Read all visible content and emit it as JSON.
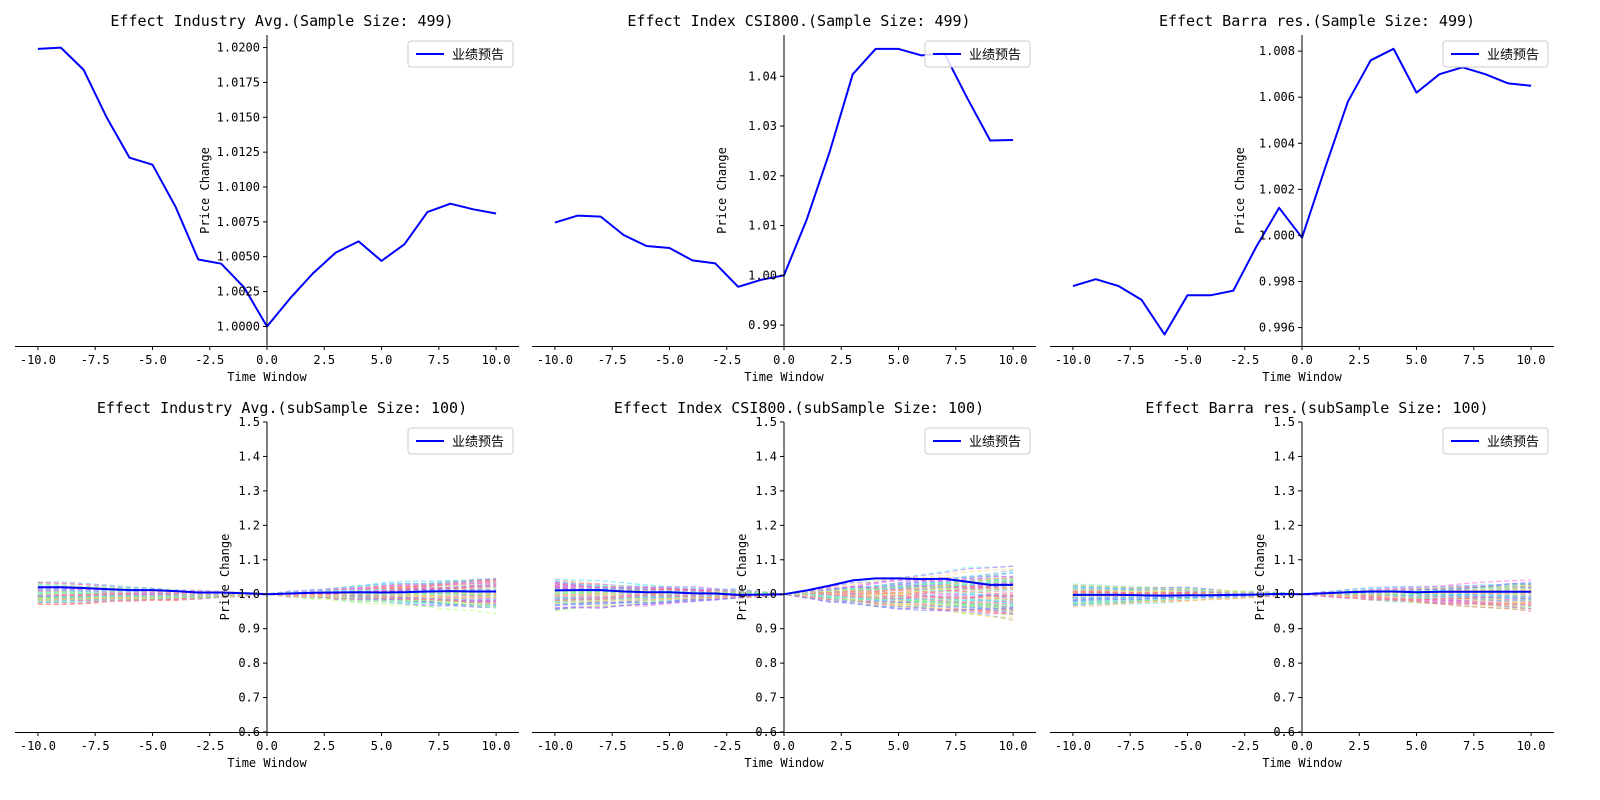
{
  "chart_data": [
    {
      "type": "line",
      "title": "Effect Industry Avg.(Sample Size: 499)",
      "xlabel": "Time Window",
      "ylabel": "Price Change",
      "xlim": [
        -11,
        11
      ],
      "ylim": [
        0.9986,
        1.0209
      ],
      "xticks": [
        -10.0,
        -7.5,
        -5.0,
        -2.5,
        0.0,
        2.5,
        5.0,
        7.5,
        10.0
      ],
      "xtick_labels": [
        "-10.0",
        "-7.5",
        "-5.0",
        "-2.5",
        "0.0",
        "2.5",
        "5.0",
        "7.5",
        "10.0"
      ],
      "yticks": [
        1.0,
        1.0025,
        1.005,
        1.0075,
        1.01,
        1.0125,
        1.015,
        1.0175,
        1.02
      ],
      "ytick_labels": [
        "1.0000",
        "1.0025",
        "1.0050",
        "1.0075",
        "1.0100",
        "1.0125",
        "1.0150",
        "1.0175",
        "1.0200"
      ],
      "legend": "top-right",
      "series": [
        {
          "name": "业绩预告",
          "color": "#0000ff",
          "x": [
            -10,
            -9,
            -8,
            -7,
            -6,
            -5,
            -4,
            -3,
            -2,
            -1,
            0,
            1,
            2,
            3,
            4,
            5,
            6,
            7,
            8,
            9,
            10
          ],
          "values": [
            1.0199,
            1.02,
            1.0184,
            1.015,
            1.0121,
            1.0116,
            1.0086,
            1.0048,
            1.0045,
            1.0028,
            1.0,
            1.002,
            1.0038,
            1.0053,
            1.0061,
            1.0047,
            1.0059,
            1.0082,
            1.0088,
            1.0084,
            1.0081
          ]
        }
      ]
    },
    {
      "type": "line",
      "title": "Effect Index CSI800.(Sample Size: 499)",
      "xlabel": "Time Window",
      "ylabel": "Price Change",
      "xlim": [
        -11,
        11
      ],
      "ylim": [
        0.9858,
        1.0483
      ],
      "xticks": [
        -10.0,
        -7.5,
        -5.0,
        -2.5,
        0.0,
        2.5,
        5.0,
        7.5,
        10.0
      ],
      "xtick_labels": [
        "-10.0",
        "-7.5",
        "-5.0",
        "-2.5",
        "0.0",
        "2.5",
        "5.0",
        "7.5",
        "10.0"
      ],
      "yticks": [
        0.99,
        1.0,
        1.01,
        1.02,
        1.03,
        1.04
      ],
      "ytick_labels": [
        "0.99",
        "1.00",
        "1.01",
        "1.02",
        "1.03",
        "1.04"
      ],
      "legend": "top-right",
      "series": [
        {
          "name": "业绩预告",
          "color": "#0000ff",
          "x": [
            -10,
            -9,
            -8,
            -7,
            -6,
            -5,
            -4,
            -3,
            -2,
            -1,
            0,
            1,
            2,
            3,
            4,
            5,
            6,
            7,
            8,
            9,
            10
          ],
          "values": [
            1.0106,
            1.012,
            1.0118,
            1.0081,
            1.0059,
            1.0055,
            1.003,
            1.0024,
            0.9977,
            0.9991,
            1.0,
            1.0113,
            1.0249,
            1.0404,
            1.0455,
            1.0455,
            1.0442,
            1.0446,
            1.0356,
            1.0271,
            1.0272
          ]
        }
      ]
    },
    {
      "type": "line",
      "title": "Effect Barra res.(Sample Size: 499)",
      "xlabel": "Time Window",
      "ylabel": "Price Change",
      "xlim": [
        -11,
        11
      ],
      "ylim": [
        0.9952,
        1.0087
      ],
      "xticks": [
        -10.0,
        -7.5,
        -5.0,
        -2.5,
        0.0,
        2.5,
        5.0,
        7.5,
        10.0
      ],
      "xtick_labels": [
        "-10.0",
        "-7.5",
        "-5.0",
        "-2.5",
        "0.0",
        "2.5",
        "5.0",
        "7.5",
        "10.0"
      ],
      "yticks": [
        0.996,
        0.998,
        1.0,
        1.002,
        1.004,
        1.006,
        1.008
      ],
      "ytick_labels": [
        "0.996",
        "0.998",
        "1.000",
        "1.002",
        "1.004",
        "1.006",
        "1.008"
      ],
      "legend": "top-right",
      "series": [
        {
          "name": "业绩预告",
          "color": "#0000ff",
          "x": [
            -10,
            -9,
            -8,
            -7,
            -6,
            -5,
            -4,
            -3,
            -2,
            -1,
            0,
            1,
            2,
            3,
            4,
            5,
            6,
            7,
            8,
            9,
            10
          ],
          "values": [
            0.9978,
            0.9981,
            0.9978,
            0.9972,
            0.9957,
            0.9974,
            0.9974,
            0.9976,
            0.9995,
            1.0012,
            0.9999,
            1.0029,
            1.0058,
            1.0076,
            1.0081,
            1.0062,
            1.007,
            1.0073,
            1.007,
            1.0066,
            1.0065
          ]
        }
      ]
    },
    {
      "type": "line",
      "title": "Effect Industry Avg.(subSample Size: 100)",
      "xlabel": "Time Window",
      "ylabel": "Price Change",
      "xlim": [
        -11,
        11
      ],
      "ylim": [
        0.6,
        1.5
      ],
      "xticks": [
        -10.0,
        -7.5,
        -5.0,
        -2.5,
        0.0,
        2.5,
        5.0,
        7.5,
        10.0
      ],
      "xtick_labels": [
        "-10.0",
        "-7.5",
        "-5.0",
        "-2.5",
        "0.0",
        "2.5",
        "5.0",
        "7.5",
        "10.0"
      ],
      "yticks": [
        0.6,
        0.7,
        0.8,
        0.9,
        1.0,
        1.1,
        1.2,
        1.3,
        1.4,
        1.5
      ],
      "ytick_labels": [
        "0.6",
        "0.7",
        "0.8",
        "0.9",
        "1.0",
        "1.1",
        "1.2",
        "1.3",
        "1.4",
        "1.5"
      ],
      "legend": "top-right",
      "subsample": {
        "count": 100,
        "spread_before": 0.085,
        "spread_after": 0.11,
        "seed": 11
      },
      "series": [
        {
          "name": "业绩预告",
          "color": "#0000ff",
          "x": [
            -10,
            -9,
            -8,
            -7,
            -6,
            -5,
            -4,
            -3,
            -2,
            -1,
            0,
            1,
            2,
            3,
            4,
            5,
            6,
            7,
            8,
            9,
            10
          ],
          "values": [
            1.02,
            1.02,
            1.018,
            1.015,
            1.012,
            1.012,
            1.009,
            1.005,
            1.005,
            1.003,
            1.0,
            1.002,
            1.004,
            1.005,
            1.006,
            1.005,
            1.006,
            1.008,
            1.009,
            1.008,
            1.008
          ]
        }
      ]
    },
    {
      "type": "line",
      "title": "Effect Index CSI800.(subSample Size: 100)",
      "xlabel": "Time Window",
      "ylabel": "Price Change",
      "xlim": [
        -11,
        11
      ],
      "ylim": [
        0.6,
        1.5
      ],
      "xticks": [
        -10.0,
        -7.5,
        -5.0,
        -2.5,
        0.0,
        2.5,
        5.0,
        7.5,
        10.0
      ],
      "xtick_labels": [
        "-10.0",
        "-7.5",
        "-5.0",
        "-2.5",
        "0.0",
        "2.5",
        "5.0",
        "7.5",
        "10.0"
      ],
      "yticks": [
        0.6,
        0.7,
        0.8,
        0.9,
        1.0,
        1.1,
        1.2,
        1.3,
        1.4,
        1.5
      ],
      "ytick_labels": [
        "0.6",
        "0.7",
        "0.8",
        "0.9",
        "1.0",
        "1.1",
        "1.2",
        "1.3",
        "1.4",
        "1.5"
      ],
      "legend": "top-right",
      "subsample": {
        "count": 100,
        "spread_before": 0.12,
        "spread_after": 0.16,
        "seed": 23
      },
      "series": [
        {
          "name": "业绩预告",
          "color": "#0000ff",
          "x": [
            -10,
            -9,
            -8,
            -7,
            -6,
            -5,
            -4,
            -3,
            -2,
            -1,
            0,
            1,
            2,
            3,
            4,
            5,
            6,
            7,
            8,
            9,
            10
          ],
          "values": [
            1.011,
            1.012,
            1.012,
            1.008,
            1.006,
            1.006,
            1.003,
            1.002,
            0.998,
            0.999,
            1.0,
            1.011,
            1.025,
            1.04,
            1.046,
            1.046,
            1.044,
            1.045,
            1.036,
            1.027,
            1.027
          ]
        }
      ]
    },
    {
      "type": "line",
      "title": "Effect Barra res.(subSample Size: 100)",
      "xlabel": "Time Window",
      "ylabel": "Price Change",
      "xlim": [
        -11,
        11
      ],
      "ylim": [
        0.6,
        1.5
      ],
      "xticks": [
        -10.0,
        -7.5,
        -5.0,
        -2.5,
        0.0,
        2.5,
        5.0,
        7.5,
        10.0
      ],
      "xtick_labels": [
        "-10.0",
        "-7.5",
        "-5.0",
        "-2.5",
        "0.0",
        "2.5",
        "5.0",
        "7.5",
        "10.0"
      ],
      "yticks": [
        0.6,
        0.7,
        0.8,
        0.9,
        1.0,
        1.1,
        1.2,
        1.3,
        1.4,
        1.5
      ],
      "ytick_labels": [
        "0.6",
        "0.7",
        "0.8",
        "0.9",
        "1.0",
        "1.1",
        "1.2",
        "1.3",
        "1.4",
        "1.5"
      ],
      "legend": "top-right",
      "subsample": {
        "count": 100,
        "spread_before": 0.08,
        "spread_after": 0.1,
        "seed": 37
      },
      "series": [
        {
          "name": "业绩预告",
          "color": "#0000ff",
          "x": [
            -10,
            -9,
            -8,
            -7,
            -6,
            -5,
            -4,
            -3,
            -2,
            -1,
            0,
            1,
            2,
            3,
            4,
            5,
            6,
            7,
            8,
            9,
            10
          ],
          "values": [
            0.998,
            0.998,
            0.998,
            0.997,
            0.996,
            0.997,
            0.997,
            0.998,
            0.999,
            1.001,
            1.0,
            1.003,
            1.006,
            1.008,
            1.008,
            1.006,
            1.007,
            1.007,
            1.007,
            1.007,
            1.007
          ]
        }
      ]
    }
  ]
}
